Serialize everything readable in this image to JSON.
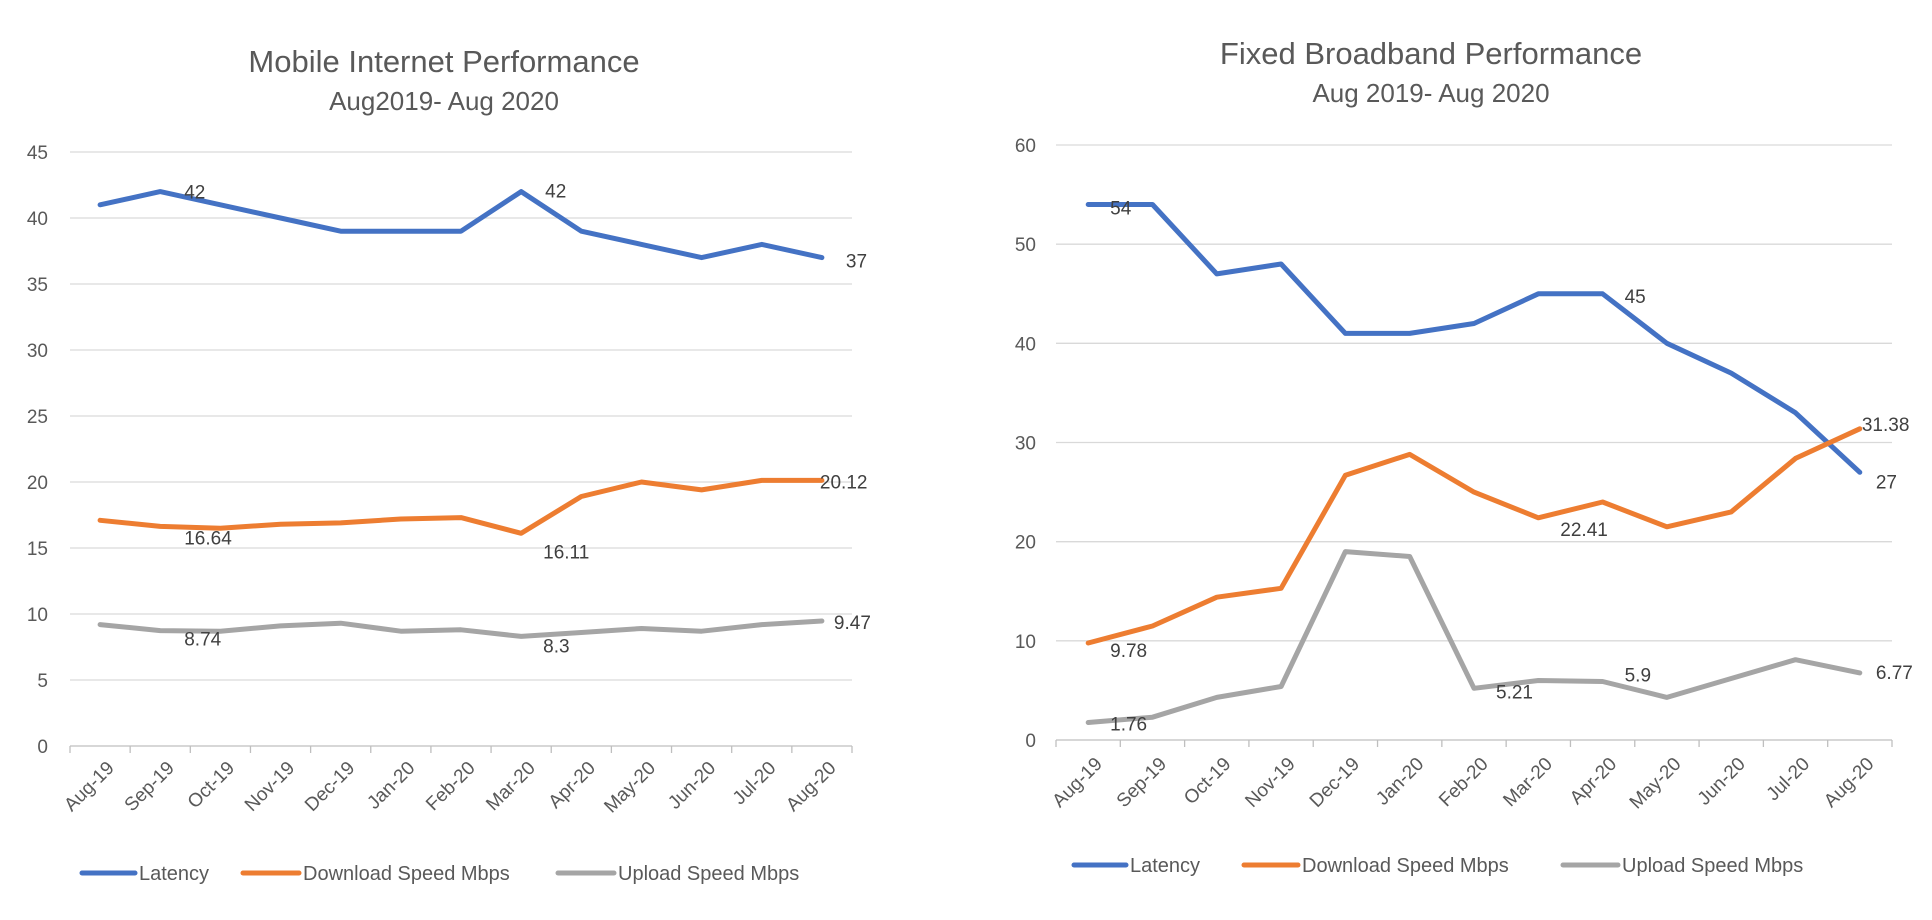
{
  "chart_data": [
    {
      "type": "line",
      "title": "Mobile Internet Performance",
      "subtitle": "Aug2019- Aug 2020",
      "categories": [
        "Aug-19",
        "Sep-19",
        "Oct-19",
        "Nov-19",
        "Dec-19",
        "Jan-20",
        "Feb-20",
        "Mar-20",
        "Apr-20",
        "May-20",
        "Jun-20",
        "Jul-20",
        "Aug-20"
      ],
      "ylim": [
        0,
        45
      ],
      "yticks": [
        0,
        5,
        10,
        15,
        20,
        25,
        30,
        35,
        40,
        45
      ],
      "grid": true,
      "legend_position": "bottom",
      "series": [
        {
          "name": "Latency",
          "color": "#4472C4",
          "values": [
            41,
            42,
            41,
            40,
            39,
            39,
            39,
            42,
            39,
            38,
            37,
            38,
            37
          ],
          "labels": [
            {
              "index": 1,
              "text": "42"
            },
            {
              "index": 7,
              "text": "42"
            },
            {
              "index": 12,
              "text": "37"
            }
          ]
        },
        {
          "name": "Download Speed Mbps",
          "color": "#ED7D31",
          "values": [
            17.1,
            16.64,
            16.5,
            16.8,
            16.9,
            17.2,
            17.3,
            16.11,
            18.9,
            20.0,
            19.4,
            20.12,
            20.12
          ],
          "labels": [
            {
              "index": 1,
              "text": "16.64"
            },
            {
              "index": 7,
              "text": "16.11"
            },
            {
              "index": 12,
              "text": "20.12"
            }
          ]
        },
        {
          "name": "Upload Speed Mbps",
          "color": "#A5A5A5",
          "values": [
            9.2,
            8.74,
            8.7,
            9.1,
            9.3,
            8.7,
            8.8,
            8.3,
            8.6,
            8.9,
            8.7,
            9.2,
            9.47
          ],
          "labels": [
            {
              "index": 1,
              "text": "8.74"
            },
            {
              "index": 7,
              "text": "8.3"
            },
            {
              "index": 12,
              "text": "9.47"
            }
          ]
        }
      ]
    },
    {
      "type": "line",
      "title": "Fixed Broadband Performance",
      "subtitle": "Aug 2019- Aug 2020",
      "categories": [
        "Aug-19",
        "Sep-19",
        "Oct-19",
        "Nov-19",
        "Dec-19",
        "Jan-20",
        "Feb-20",
        "Mar-20",
        "Apr-20",
        "May-20",
        "Jun-20",
        "Jul-20",
        "Aug-20"
      ],
      "ylim": [
        0,
        60
      ],
      "yticks": [
        0,
        10,
        20,
        30,
        40,
        50,
        60
      ],
      "grid": true,
      "legend_position": "bottom",
      "series": [
        {
          "name": "Latency",
          "color": "#4472C4",
          "values": [
            54,
            54,
            47,
            48,
            41,
            41,
            42,
            45,
            45,
            40,
            37,
            33,
            27
          ],
          "labels": [
            {
              "index": 0,
              "text": "54"
            },
            {
              "index": 8,
              "text": "45"
            },
            {
              "index": 12,
              "text": "27"
            }
          ]
        },
        {
          "name": "Download Speed Mbps",
          "color": "#ED7D31",
          "values": [
            9.78,
            11.5,
            14.4,
            15.3,
            26.7,
            28.8,
            25.0,
            22.41,
            24.0,
            21.5,
            23.0,
            28.4,
            31.38
          ],
          "labels": [
            {
              "index": 0,
              "text": "9.78"
            },
            {
              "index": 7,
              "text": "22.41"
            },
            {
              "index": 12,
              "text": "31.38"
            }
          ]
        },
        {
          "name": "Upload Speed Mbps",
          "color": "#A5A5A5",
          "values": [
            1.76,
            2.3,
            4.3,
            5.4,
            19.0,
            18.5,
            5.21,
            6.0,
            5.9,
            4.3,
            6.2,
            8.1,
            6.77
          ],
          "labels": [
            {
              "index": 0,
              "text": "1.76"
            },
            {
              "index": 6,
              "text": "5.21"
            },
            {
              "index": 8,
              "text": "5.9"
            },
            {
              "index": 12,
              "text": "6.77"
            }
          ]
        }
      ]
    }
  ]
}
